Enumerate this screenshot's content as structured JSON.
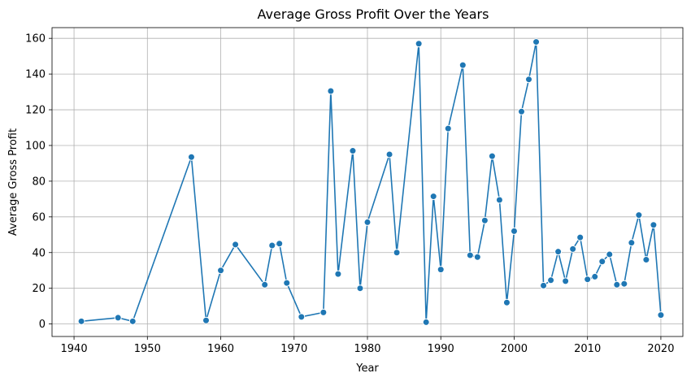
{
  "chart_data": {
    "type": "line",
    "title": "Average Gross Profit Over the Years",
    "xlabel": "Year",
    "ylabel": "Average Gross Profit",
    "xlim": [
      1937,
      2023
    ],
    "ylim": [
      -7,
      166
    ],
    "xticks": [
      1940,
      1950,
      1960,
      1970,
      1980,
      1990,
      2000,
      2010,
      2020
    ],
    "yticks": [
      0,
      20,
      40,
      60,
      80,
      100,
      120,
      140,
      160
    ],
    "grid": true,
    "color": "#1f77b4",
    "series": [
      {
        "x": [
          1941,
          1946,
          1948,
          1956,
          1958,
          1960,
          1962,
          1966,
          1967,
          1968,
          1969,
          1971,
          1974,
          1975,
          1976,
          1978,
          1979,
          1980,
          1983,
          1984,
          1987,
          1988,
          1989,
          1990,
          1991,
          1993,
          1994,
          1995,
          1996,
          1997,
          1998,
          1999,
          2000,
          2001,
          2002,
          2003,
          2004,
          2005,
          2006,
          2007,
          2008,
          2009,
          2010,
          2011,
          2012,
          2013,
          2014,
          2015,
          2016,
          2017,
          2018,
          2019,
          2020
        ],
        "y": [
          1.5,
          3.5,
          1.5,
          93.5,
          2,
          30,
          44.5,
          22,
          44,
          45,
          23,
          4,
          6.5,
          130.5,
          28,
          97,
          20,
          57,
          95,
          40,
          157,
          1,
          71.5,
          30.5,
          109.5,
          145,
          38.5,
          37.5,
          58,
          94,
          69.5,
          12,
          52,
          119,
          137,
          158,
          21.5,
          24.5,
          40.5,
          24,
          42,
          48.5,
          25,
          26.5,
          35,
          39,
          22,
          22.5,
          45.5,
          61,
          36,
          55.5,
          5
        ]
      }
    ]
  }
}
